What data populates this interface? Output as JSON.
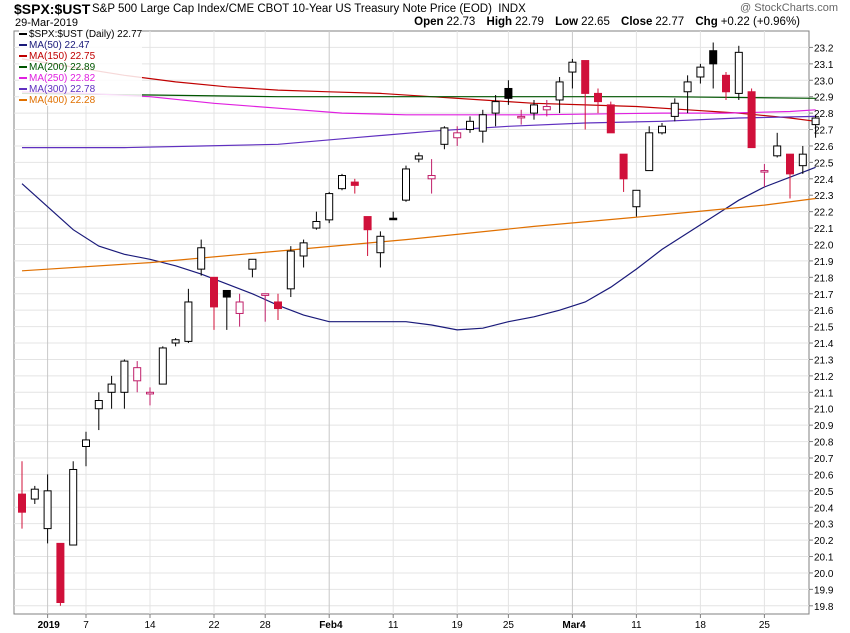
{
  "header": {
    "symbol": "$SPX:$UST",
    "description": "S&P 500 Large Cap Index/CME CBOT 10-Year US Treasury Note Price (EOD)",
    "exchange": "INDX",
    "date": "29-Mar-2019",
    "watermark": "@ StockCharts.com",
    "ohlc": {
      "open_label": "Open",
      "open": "22.73",
      "high_label": "High",
      "high": "22.79",
      "low_label": "Low",
      "low": "22.65",
      "close_label": "Close",
      "close": "22.77",
      "chg_label": "Chg",
      "chg": "+0.22 (+0.96%)"
    }
  },
  "legend": [
    {
      "label": "$SPX:$UST (Daily) 22.77",
      "color": "#000000",
      "kind": "price"
    },
    {
      "label": "MA(50) 22.47",
      "color": "#1a1a7a",
      "kind": "ma"
    },
    {
      "label": "MA(150) 22.75",
      "color": "#c00000",
      "kind": "ma"
    },
    {
      "label": "MA(200) 22.89",
      "color": "#005500",
      "kind": "ma"
    },
    {
      "label": "MA(250) 22.82",
      "color": "#e020e0",
      "kind": "ma"
    },
    {
      "label": "MA(300) 22.78",
      "color": "#6030c0",
      "kind": "ma"
    },
    {
      "label": "MA(400) 22.28",
      "color": "#e07000",
      "kind": "ma"
    }
  ],
  "chart_data": {
    "type": "candlestick",
    "title": "$SPX:$UST",
    "ylim": [
      19.75,
      23.3
    ],
    "y_ticks": [
      "19.8",
      "19.9",
      "20.0",
      "20.1",
      "20.2",
      "20.3",
      "20.4",
      "20.5",
      "20.6",
      "20.7",
      "20.8",
      "20.9",
      "21.0",
      "21.1",
      "21.2",
      "21.3",
      "21.4",
      "21.5",
      "21.6",
      "21.7",
      "21.8",
      "21.9",
      "22.0",
      "22.1",
      "22.2",
      "22.3",
      "22.4",
      "22.5",
      "22.6",
      "22.7",
      "22.8",
      "22.9",
      "23.0",
      "23.1",
      "23.2"
    ],
    "x_ticks": [
      {
        "label": "2019",
        "index": 2,
        "bold": true
      },
      {
        "label": "7",
        "index": 5
      },
      {
        "label": "14",
        "index": 10
      },
      {
        "label": "22",
        "index": 15
      },
      {
        "label": "28",
        "index": 19
      },
      {
        "label": "Feb4",
        "index": 24,
        "bold": true
      },
      {
        "label": "11",
        "index": 29
      },
      {
        "label": "19",
        "index": 34
      },
      {
        "label": "25",
        "index": 38
      },
      {
        "label": "Mar4",
        "index": 43,
        "bold": true
      },
      {
        "label": "11",
        "index": 48
      },
      {
        "label": "18",
        "index": 53
      },
      {
        "label": "25",
        "index": 58
      }
    ],
    "colors": {
      "up": "#ffffff",
      "down_red": "#d0103a",
      "down_black": "#000000",
      "wick_pink": "#c0206a"
    },
    "candles": [
      {
        "o": 20.48,
        "h": 20.68,
        "l": 20.27,
        "c": 20.37,
        "t": "r"
      },
      {
        "o": 20.45,
        "h": 20.53,
        "l": 20.42,
        "c": 20.51,
        "t": "u"
      },
      {
        "o": 20.5,
        "h": 20.6,
        "l": 20.18,
        "c": 20.27,
        "t": "u"
      },
      {
        "o": 20.18,
        "h": 20.18,
        "l": 19.8,
        "c": 19.82,
        "t": "r"
      },
      {
        "o": 20.17,
        "h": 20.68,
        "l": 20.17,
        "c": 20.63,
        "t": "u"
      },
      {
        "o": 20.77,
        "h": 20.86,
        "l": 20.65,
        "c": 20.81,
        "t": "u"
      },
      {
        "o": 21.0,
        "h": 21.1,
        "l": 20.87,
        "c": 21.05,
        "t": "u"
      },
      {
        "o": 21.1,
        "h": 21.2,
        "l": 21.0,
        "c": 21.15,
        "t": "u"
      },
      {
        "o": 21.1,
        "h": 21.3,
        "l": 21.0,
        "c": 21.29,
        "t": "u"
      },
      {
        "o": 21.25,
        "h": 21.29,
        "l": 21.1,
        "c": 21.17,
        "t": "p"
      },
      {
        "o": 21.1,
        "h": 21.13,
        "l": 21.02,
        "c": 21.09,
        "t": "p"
      },
      {
        "o": 21.15,
        "h": 21.38,
        "l": 21.15,
        "c": 21.37,
        "t": "u"
      },
      {
        "o": 21.4,
        "h": 21.43,
        "l": 21.38,
        "c": 21.42,
        "t": "u"
      },
      {
        "o": 21.41,
        "h": 21.73,
        "l": 21.4,
        "c": 21.65,
        "t": "u"
      },
      {
        "o": 21.85,
        "h": 22.03,
        "l": 21.81,
        "c": 21.98,
        "t": "u"
      },
      {
        "o": 21.8,
        "h": 21.8,
        "l": 21.48,
        "c": 21.62,
        "t": "r"
      },
      {
        "o": 21.72,
        "h": 21.72,
        "l": 21.48,
        "c": 21.68,
        "t": "b"
      },
      {
        "o": 21.58,
        "h": 21.7,
        "l": 21.5,
        "c": 21.65,
        "t": "p"
      },
      {
        "o": 21.85,
        "h": 21.91,
        "l": 21.8,
        "c": 21.91,
        "t": "u"
      },
      {
        "o": 21.7,
        "h": 21.7,
        "l": 21.53,
        "c": 21.69,
        "t": "p"
      },
      {
        "o": 21.65,
        "h": 21.7,
        "l": 21.54,
        "c": 21.61,
        "t": "r"
      },
      {
        "o": 21.73,
        "h": 21.99,
        "l": 21.68,
        "c": 21.96,
        "t": "u"
      },
      {
        "o": 21.93,
        "h": 22.03,
        "l": 21.86,
        "c": 22.01,
        "t": "u"
      },
      {
        "o": 22.1,
        "h": 22.2,
        "l": 22.09,
        "c": 22.14,
        "t": "u"
      },
      {
        "o": 22.15,
        "h": 22.32,
        "l": 22.13,
        "c": 22.31,
        "t": "u"
      },
      {
        "o": 22.34,
        "h": 22.43,
        "l": 22.33,
        "c": 22.42,
        "t": "u"
      },
      {
        "o": 22.38,
        "h": 22.4,
        "l": 22.31,
        "c": 22.36,
        "t": "r"
      },
      {
        "o": 22.17,
        "h": 22.17,
        "l": 21.93,
        "c": 22.09,
        "t": "r"
      },
      {
        "o": 22.05,
        "h": 22.08,
        "l": 21.86,
        "c": 21.95,
        "t": "u"
      },
      {
        "o": 22.16,
        "h": 22.2,
        "l": 22.15,
        "c": 22.16,
        "t": "b"
      },
      {
        "o": 22.27,
        "h": 22.48,
        "l": 22.26,
        "c": 22.46,
        "t": "u"
      },
      {
        "o": 22.52,
        "h": 22.56,
        "l": 22.5,
        "c": 22.54,
        "t": "u"
      },
      {
        "o": 22.42,
        "h": 22.52,
        "l": 22.31,
        "c": 22.4,
        "t": "p"
      },
      {
        "o": 22.61,
        "h": 22.72,
        "l": 22.58,
        "c": 22.71,
        "t": "u"
      },
      {
        "o": 22.68,
        "h": 22.72,
        "l": 22.6,
        "c": 22.65,
        "t": "p"
      },
      {
        "o": 22.7,
        "h": 22.78,
        "l": 22.68,
        "c": 22.75,
        "t": "u"
      },
      {
        "o": 22.69,
        "h": 22.82,
        "l": 22.62,
        "c": 22.79,
        "t": "u"
      },
      {
        "o": 22.8,
        "h": 22.91,
        "l": 22.72,
        "c": 22.87,
        "t": "u"
      },
      {
        "o": 22.95,
        "h": 23.0,
        "l": 22.85,
        "c": 22.89,
        "t": "b"
      },
      {
        "o": 22.78,
        "h": 22.82,
        "l": 22.73,
        "c": 22.78,
        "t": "p"
      },
      {
        "o": 22.8,
        "h": 22.88,
        "l": 22.76,
        "c": 22.85,
        "t": "u"
      },
      {
        "o": 22.82,
        "h": 22.88,
        "l": 22.78,
        "c": 22.84,
        "t": "p"
      },
      {
        "o": 22.88,
        "h": 23.02,
        "l": 22.8,
        "c": 22.99,
        "t": "u"
      },
      {
        "o": 23.05,
        "h": 23.13,
        "l": 22.95,
        "c": 23.11,
        "t": "u"
      },
      {
        "o": 23.12,
        "h": 23.12,
        "l": 22.7,
        "c": 22.92,
        "t": "r"
      },
      {
        "o": 22.92,
        "h": 22.95,
        "l": 22.8,
        "c": 22.87,
        "t": "r"
      },
      {
        "o": 22.85,
        "h": 22.87,
        "l": 22.68,
        "c": 22.68,
        "t": "r"
      },
      {
        "o": 22.55,
        "h": 22.55,
        "l": 22.32,
        "c": 22.4,
        "t": "r"
      },
      {
        "o": 22.23,
        "h": 22.33,
        "l": 22.17,
        "c": 22.33,
        "t": "u"
      },
      {
        "o": 22.45,
        "h": 22.72,
        "l": 22.45,
        "c": 22.68,
        "t": "u"
      },
      {
        "o": 22.68,
        "h": 22.74,
        "l": 22.67,
        "c": 22.72,
        "t": "u"
      },
      {
        "o": 22.78,
        "h": 22.89,
        "l": 22.75,
        "c": 22.86,
        "t": "u"
      },
      {
        "o": 22.93,
        "h": 23.03,
        "l": 22.8,
        "c": 22.99,
        "t": "u"
      },
      {
        "o": 23.02,
        "h": 23.1,
        "l": 22.98,
        "c": 23.08,
        "t": "u"
      },
      {
        "o": 23.1,
        "h": 23.23,
        "l": 22.95,
        "c": 23.18,
        "t": "b"
      },
      {
        "o": 23.03,
        "h": 23.05,
        "l": 22.88,
        "c": 22.93,
        "t": "r"
      },
      {
        "o": 22.92,
        "h": 23.21,
        "l": 22.88,
        "c": 23.17,
        "t": "u"
      },
      {
        "o": 22.93,
        "h": 22.95,
        "l": 22.59,
        "c": 22.59,
        "t": "r"
      },
      {
        "o": 22.45,
        "h": 22.49,
        "l": 22.35,
        "c": 22.45,
        "t": "p"
      },
      {
        "o": 22.54,
        "h": 22.68,
        "l": 22.53,
        "c": 22.6,
        "t": "u"
      },
      {
        "o": 22.55,
        "h": 22.55,
        "l": 22.28,
        "c": 22.43,
        "t": "r"
      },
      {
        "o": 22.48,
        "h": 22.6,
        "l": 22.43,
        "c": 22.55,
        "t": "u"
      },
      {
        "o": 22.73,
        "h": 22.79,
        "l": 22.65,
        "c": 22.77,
        "t": "u"
      }
    ],
    "moving_averages": [
      {
        "name": "MA(50)",
        "color": "#1a1a7a",
        "points": [
          [
            0,
            22.37
          ],
          [
            2,
            22.23
          ],
          [
            4,
            22.09
          ],
          [
            6,
            21.99
          ],
          [
            8,
            21.94
          ],
          [
            10,
            21.91
          ],
          [
            12,
            21.87
          ],
          [
            14,
            21.82
          ],
          [
            16,
            21.76
          ],
          [
            18,
            21.7
          ],
          [
            20,
            21.63
          ],
          [
            22,
            21.57
          ],
          [
            24,
            21.53
          ],
          [
            26,
            21.53
          ],
          [
            28,
            21.53
          ],
          [
            30,
            21.53
          ],
          [
            32,
            21.51
          ],
          [
            34,
            21.48
          ],
          [
            36,
            21.49
          ],
          [
            38,
            21.53
          ],
          [
            40,
            21.56
          ],
          [
            42,
            21.6
          ],
          [
            44,
            21.65
          ],
          [
            46,
            21.74
          ],
          [
            48,
            21.85
          ],
          [
            50,
            21.97
          ],
          [
            52,
            22.07
          ],
          [
            54,
            22.17
          ],
          [
            56,
            22.27
          ],
          [
            58,
            22.35
          ],
          [
            60,
            22.41
          ],
          [
            62,
            22.47
          ]
        ]
      },
      {
        "name": "MA(150)",
        "color": "#c00000",
        "points": [
          [
            0,
            23.13
          ],
          [
            4,
            23.08
          ],
          [
            8,
            23.03
          ],
          [
            12,
            22.99
          ],
          [
            16,
            22.96
          ],
          [
            20,
            22.94
          ],
          [
            24,
            22.93
          ],
          [
            28,
            22.92
          ],
          [
            32,
            22.9
          ],
          [
            36,
            22.88
          ],
          [
            40,
            22.86
          ],
          [
            44,
            22.85
          ],
          [
            48,
            22.84
          ],
          [
            52,
            22.82
          ],
          [
            56,
            22.8
          ],
          [
            60,
            22.77
          ],
          [
            62,
            22.75
          ]
        ]
      },
      {
        "name": "MA(200)",
        "color": "#005500",
        "points": [
          [
            0,
            22.92
          ],
          [
            10,
            22.91
          ],
          [
            20,
            22.9
          ],
          [
            30,
            22.9
          ],
          [
            40,
            22.9
          ],
          [
            50,
            22.9
          ],
          [
            62,
            22.89
          ]
        ]
      },
      {
        "name": "MA(250)",
        "color": "#e020e0",
        "points": [
          [
            0,
            22.93
          ],
          [
            5,
            22.92
          ],
          [
            10,
            22.9
          ],
          [
            15,
            22.86
          ],
          [
            20,
            22.83
          ],
          [
            25,
            22.8
          ],
          [
            30,
            22.79
          ],
          [
            40,
            22.79
          ],
          [
            50,
            22.8
          ],
          [
            55,
            22.8
          ],
          [
            60,
            22.81
          ],
          [
            62,
            22.82
          ]
        ]
      },
      {
        "name": "MA(300)",
        "color": "#6030c0",
        "points": [
          [
            0,
            22.59
          ],
          [
            8,
            22.59
          ],
          [
            14,
            22.6
          ],
          [
            20,
            22.61
          ],
          [
            26,
            22.65
          ],
          [
            32,
            22.69
          ],
          [
            38,
            22.72
          ],
          [
            44,
            22.74
          ],
          [
            50,
            22.75
          ],
          [
            56,
            22.77
          ],
          [
            62,
            22.78
          ]
        ]
      },
      {
        "name": "MA(400)",
        "color": "#e07000",
        "points": [
          [
            0,
            21.84
          ],
          [
            10,
            21.89
          ],
          [
            20,
            21.96
          ],
          [
            30,
            22.03
          ],
          [
            40,
            22.11
          ],
          [
            50,
            22.18
          ],
          [
            58,
            22.24
          ],
          [
            62,
            22.28
          ]
        ]
      }
    ]
  }
}
